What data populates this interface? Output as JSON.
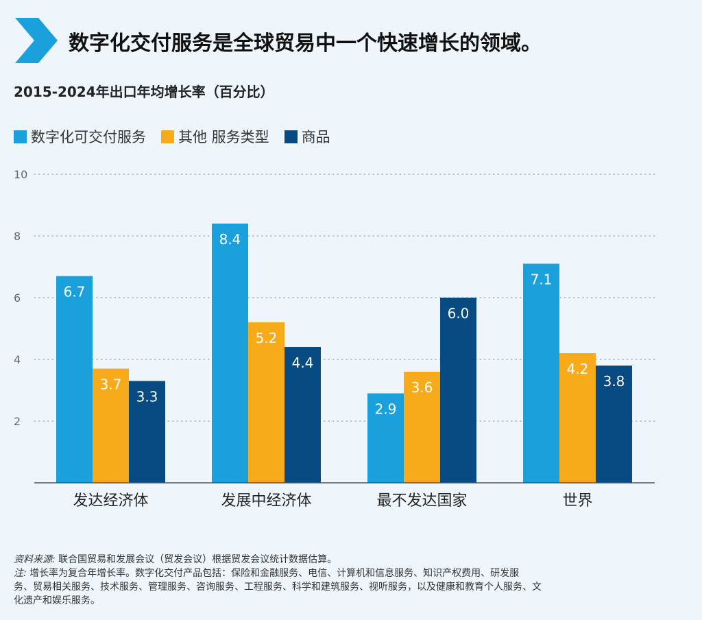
{
  "header": {
    "title": "数字化交付服务是全球贸易中一个快速增长的领域。",
    "icon": "chevron-right-icon",
    "icon_color": "#1aa0db"
  },
  "colors": {
    "digital": "#1aa0db",
    "other": "#f7ab1b",
    "goods": "#084b83",
    "grid": "#9aa4ad",
    "axis": "#555555",
    "background": "#eef6fb"
  },
  "chart_data": {
    "type": "bar",
    "title": "2015-2024年出口年均增长率（百分比）",
    "categories": [
      "发达经济体",
      "发展中经济体",
      "最不发达国家",
      "世界"
    ],
    "series": [
      {
        "name": "数字化可交付服务",
        "values": [
          6.7,
          8.4,
          2.9,
          7.1
        ],
        "color": "#1aa0db"
      },
      {
        "name": "其他 服务类型",
        "values": [
          3.7,
          5.2,
          3.6,
          4.2
        ],
        "color": "#f7ab1b"
      },
      {
        "name": "商品",
        "values": [
          3.3,
          4.4,
          6.0,
          3.8
        ],
        "color": "#084b83"
      }
    ],
    "data_labels": [
      [
        "6.7",
        "8.4",
        "2.9",
        "7.1"
      ],
      [
        "3.7",
        "5.2",
        "3.6",
        "4.2"
      ],
      [
        "3.3",
        "4.4",
        "6.0",
        "3.8"
      ]
    ],
    "yticks": [
      "2",
      "4",
      "6",
      "8",
      "10"
    ],
    "ylim": [
      0,
      10
    ],
    "grid": true,
    "legend_position": "top-left"
  },
  "notes": {
    "source_label": "资料来源:",
    "source_text": " 联合国贸易和发展会议（贸发会议）根据贸发会议统计数据估算。",
    "note_label": "注:",
    "note_lines": [
      " 增长率为复合年增长率。数字化交付产品包括：保险和金融服务、电信、计算机和信息服务、知识产权费用、研发服",
      "务、贸易相关服务、技术服务、管理服务、咨询服务、工程服务、科学和建筑服务、视听服务，以及健康和教育个人服务、文",
      "化遗产和娱乐服务。"
    ]
  }
}
